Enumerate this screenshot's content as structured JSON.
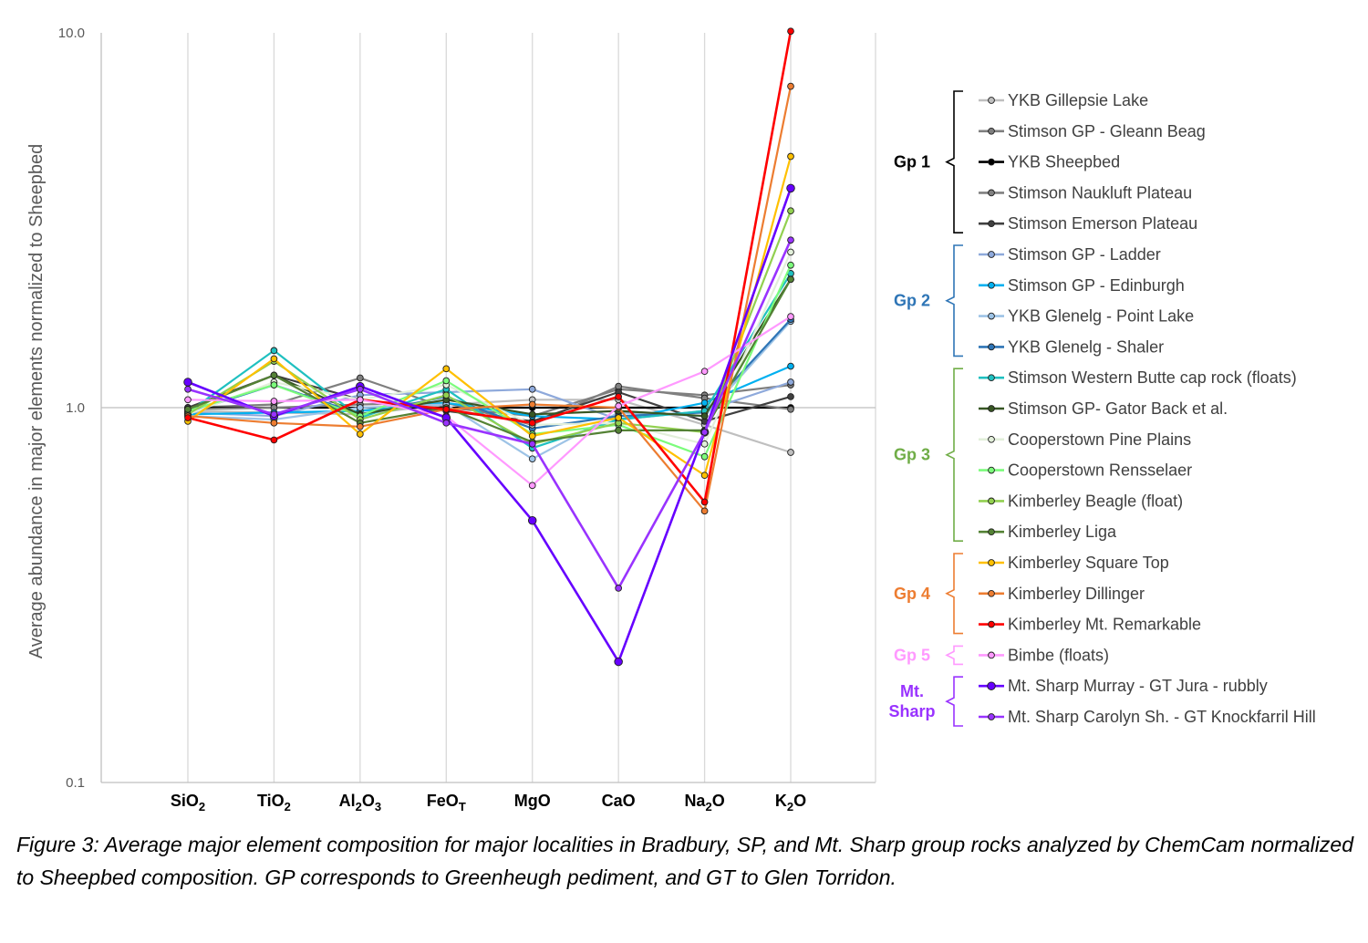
{
  "chart_data": {
    "type": "line",
    "ylabel": "Average abundance in major elements normalized to Sheepbed",
    "yscale": "log",
    "ylim": [
      0.1,
      10
    ],
    "yticks": [
      "0.1",
      "1.0",
      "10.0"
    ],
    "categories": [
      "SiO2",
      "TiO2",
      "Al2O3",
      "FeOT",
      "MgO",
      "CaO",
      "Na2O",
      "K2O"
    ],
    "category_labels": [
      {
        "base": "SiO",
        "sub": "2",
        "tail": ""
      },
      {
        "base": "TiO",
        "sub": "2",
        "tail": ""
      },
      {
        "base": "Al",
        "sub": "2",
        "tail": "O",
        "sub2": "3"
      },
      {
        "base": "FeO",
        "sub": "T",
        "tail": ""
      },
      {
        "base": "MgO",
        "sub": "",
        "tail": ""
      },
      {
        "base": "CaO",
        "sub": "",
        "tail": ""
      },
      {
        "base": "Na",
        "sub": "2",
        "tail": "O"
      },
      {
        "base": "K",
        "sub": "2",
        "tail": "O"
      }
    ],
    "series": [
      {
        "name": "YKB Gillepsie Lake",
        "color": "#bfbfbf",
        "values": [
          0.98,
          0.97,
          0.96,
          1.02,
          1.05,
          1.05,
          0.9,
          0.76
        ]
      },
      {
        "name": "Stimson GP - Gleann Beag",
        "color": "#7f7f7f",
        "values": [
          1.0,
          1.02,
          1.2,
          1.0,
          0.95,
          1.12,
          1.08,
          1.15
        ]
      },
      {
        "name": "YKB Sheepbed",
        "color": "#000000",
        "values": [
          1.0,
          1.0,
          1.0,
          1.0,
          1.0,
          1.0,
          1.0,
          1.0
        ]
      },
      {
        "name": "Stimson Naukluft Plateau",
        "color": "#808080",
        "values": [
          0.99,
          1.0,
          1.02,
          1.03,
          0.9,
          1.14,
          1.06,
          0.99
        ]
      },
      {
        "name": "Stimson Emerson Plateau",
        "color": "#404040",
        "values": [
          1.0,
          1.22,
          1.05,
          0.98,
          0.92,
          1.1,
          0.92,
          1.07
        ]
      },
      {
        "name": "Stimson GP - Ladder",
        "color": "#8ea9db",
        "values": [
          0.97,
          0.95,
          1.08,
          1.1,
          1.12,
          0.93,
          0.98,
          1.17
        ]
      },
      {
        "name": "Stimson GP - Edinburgh",
        "color": "#00b0f0",
        "values": [
          0.96,
          0.97,
          0.98,
          1.03,
          0.95,
          0.93,
          1.03,
          1.29
        ]
      },
      {
        "name": "YKB Glenelg - Point Lake",
        "color": "#9dc3e6",
        "values": [
          0.95,
          0.93,
          1.0,
          1.02,
          0.73,
          0.97,
          0.95,
          1.7
        ]
      },
      {
        "name": "YKB Glenelg - Shaler",
        "color": "#2e75b6",
        "values": [
          0.97,
          1.15,
          0.96,
          1.07,
          0.88,
          0.95,
          0.97,
          1.72
        ]
      },
      {
        "name": "Stimson Western Butte cap rock (floats)",
        "color": "#1fc0c0",
        "values": [
          0.97,
          1.42,
          0.94,
          1.12,
          0.78,
          0.93,
          0.98,
          2.28
        ]
      },
      {
        "name": "Stimson GP- Gator Back et al.",
        "color": "#375623",
        "values": [
          0.99,
          1.22,
          0.96,
          1.05,
          0.96,
          0.98,
          0.95,
          2.2
        ]
      },
      {
        "name": "Cooperstown Pine Plains",
        "color": "#e2efda",
        "values": [
          0.96,
          1.17,
          1.05,
          1.15,
          0.9,
          0.91,
          0.8,
          2.6
        ]
      },
      {
        "name": "Cooperstown Rensselaer",
        "color": "#7cfc7c",
        "values": [
          0.98,
          1.15,
          0.95,
          1.18,
          0.85,
          0.9,
          0.74,
          2.4
        ]
      },
      {
        "name": "Kimberley Beagle (float)",
        "color": "#92d050",
        "values": [
          0.96,
          1.33,
          0.93,
          1.08,
          0.8,
          0.91,
          0.86,
          3.35
        ]
      },
      {
        "name": "Kimberley Liga",
        "color": "#548235",
        "values": [
          0.99,
          1.22,
          0.91,
          1.0,
          0.81,
          0.87,
          0.87,
          2.2
        ]
      },
      {
        "name": "Kimberley Square Top",
        "color": "#ffc000",
        "values": [
          0.92,
          1.35,
          0.85,
          1.27,
          0.84,
          0.94,
          0.66,
          4.68
        ]
      },
      {
        "name": "Kimberley Dillinger",
        "color": "#ed7d31",
        "values": [
          0.95,
          0.91,
          0.89,
          0.99,
          1.02,
          1.0,
          0.53,
          7.2
        ]
      },
      {
        "name": "Kimberley Mt. Remarkable",
        "color": "#ff0000",
        "values": [
          0.94,
          0.82,
          1.05,
          0.99,
          0.91,
          1.07,
          0.56,
          10.1
        ]
      },
      {
        "name": "Bimbe (floats)",
        "color": "#ff99ff",
        "values": [
          1.05,
          1.04,
          1.05,
          0.95,
          0.62,
          1.01,
          1.25,
          1.75
        ]
      },
      {
        "name": "Mt. Sharp Murray - GT Jura - rubbly",
        "color": "#6600ff",
        "values": [
          1.17,
          0.95,
          1.14,
          0.94,
          0.5,
          0.21,
          0.86,
          3.85
        ]
      },
      {
        "name": "Mt. Sharp Carolyn Sh. - GT Knockfarril Hill",
        "color": "#9933ff",
        "values": [
          1.12,
          0.96,
          1.12,
          0.91,
          0.8,
          0.33,
          0.86,
          2.8
        ]
      }
    ],
    "groups": [
      {
        "label": "Gp 1",
        "color": "#000000",
        "first": 0,
        "last": 4
      },
      {
        "label": "Gp 2",
        "color": "#2e75b6",
        "first": 5,
        "last": 8
      },
      {
        "label": "Gp 3",
        "color": "#70ad47",
        "first": 9,
        "last": 14
      },
      {
        "label": "Gp 4",
        "color": "#ed7d31",
        "first": 15,
        "last": 17
      },
      {
        "label": "Gp 5",
        "color": "#ff99ff",
        "first": 18,
        "last": 18
      },
      {
        "label": "Mt.\nSharp",
        "color": "#9933ff",
        "first": 19,
        "last": 20
      }
    ],
    "grid": "vertical",
    "legend": "right"
  },
  "caption": "Figure 3: Average major element composition for major localities in Bradbury, SP, and Mt. Sharp group rocks analyzed by ChemCam normalized to Sheepbed composition. GP corresponds to Greenheugh pediment, and GT to Glen Torridon."
}
